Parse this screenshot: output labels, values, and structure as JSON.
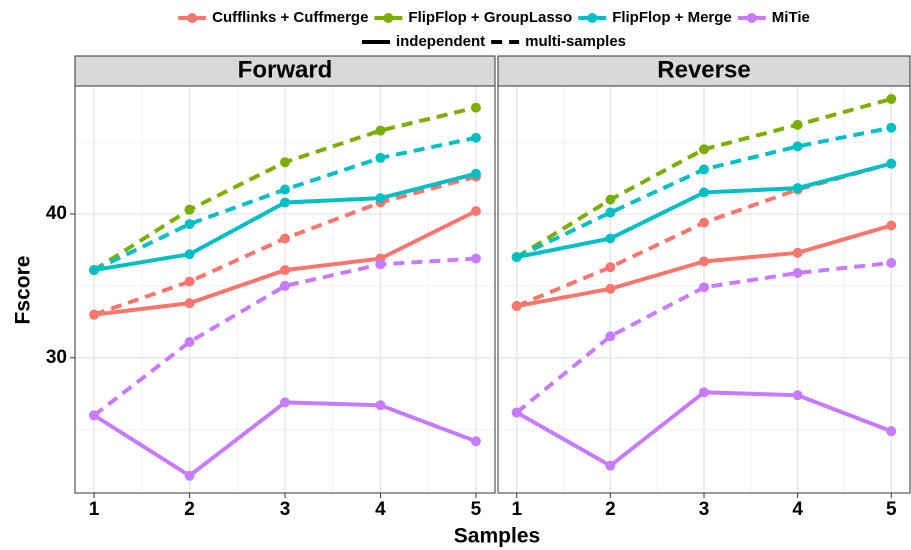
{
  "chart_data": [
    {
      "type": "line",
      "title": "Forward",
      "x_label": "Samples",
      "y_label": "Fscore",
      "x": [
        1,
        2,
        3,
        4,
        5
      ],
      "xlim": [
        0.8,
        5.2
      ],
      "xticks": [
        1,
        2,
        3,
        4,
        5
      ],
      "ylim": [
        20.6,
        48.9
      ],
      "yticks": [
        30,
        40
      ],
      "yminor": [
        25,
        35,
        45
      ],
      "grid": true,
      "series": [
        {
          "name": "Cufflinks + Cuffmerge",
          "linetype": "independent",
          "color": "#f8766d",
          "values": [
            33.0,
            33.8,
            36.1,
            36.9,
            40.2
          ]
        },
        {
          "name": "Cufflinks + Cuffmerge",
          "linetype": "multi-samples",
          "color": "#f8766d",
          "values": [
            33.0,
            35.3,
            38.3,
            40.8,
            42.6
          ]
        },
        {
          "name": "FlipFlop + GroupLasso",
          "linetype": "multi-samples",
          "color": "#7cae00",
          "values": [
            36.1,
            40.3,
            43.6,
            45.8,
            47.4
          ]
        },
        {
          "name": "FlipFlop + Merge",
          "linetype": "independent",
          "color": "#00bfc4",
          "values": [
            36.1,
            37.2,
            40.8,
            41.1,
            42.8
          ]
        },
        {
          "name": "FlipFlop + Merge",
          "linetype": "multi-samples",
          "color": "#00bfc4",
          "values": [
            36.1,
            39.3,
            41.7,
            43.9,
            45.3
          ]
        },
        {
          "name": "MiTie",
          "linetype": "independent",
          "color": "#c77cff",
          "values": [
            26.0,
            21.8,
            26.9,
            26.7,
            24.2
          ]
        },
        {
          "name": "MiTie",
          "linetype": "multi-samples",
          "color": "#c77cff",
          "values": [
            26.0,
            31.1,
            35.0,
            36.5,
            36.9
          ]
        }
      ]
    },
    {
      "type": "line",
      "title": "Reverse",
      "x": [
        1,
        2,
        3,
        4,
        5
      ],
      "xlim": [
        0.8,
        5.2
      ],
      "xticks": [
        1,
        2,
        3,
        4,
        5
      ],
      "ylim": [
        20.6,
        48.9
      ],
      "yticks": [
        30,
        40
      ],
      "yminor": [
        25,
        35,
        45
      ],
      "grid": true,
      "series": [
        {
          "name": "Cufflinks + Cuffmerge",
          "linetype": "independent",
          "color": "#f8766d",
          "values": [
            33.6,
            34.8,
            36.7,
            37.3,
            39.2
          ]
        },
        {
          "name": "Cufflinks + Cuffmerge",
          "linetype": "multi-samples",
          "color": "#f8766d",
          "values": [
            33.6,
            36.3,
            39.4,
            41.7,
            43.5
          ]
        },
        {
          "name": "FlipFlop + GroupLasso",
          "linetype": "multi-samples",
          "color": "#7cae00",
          "values": [
            37.0,
            41.0,
            44.5,
            46.2,
            48.0
          ]
        },
        {
          "name": "FlipFlop + Merge",
          "linetype": "independent",
          "color": "#00bfc4",
          "values": [
            37.0,
            38.3,
            41.5,
            41.8,
            43.5
          ]
        },
        {
          "name": "FlipFlop + Merge",
          "linetype": "multi-samples",
          "color": "#00bfc4",
          "values": [
            37.0,
            40.1,
            43.1,
            44.7,
            46.0
          ]
        },
        {
          "name": "MiTie",
          "linetype": "independent",
          "color": "#c77cff",
          "values": [
            26.2,
            22.5,
            27.6,
            27.4,
            24.9
          ]
        },
        {
          "name": "MiTie",
          "linetype": "multi-samples",
          "color": "#c77cff",
          "values": [
            26.2,
            31.5,
            34.9,
            35.9,
            36.6
          ]
        }
      ]
    }
  ]
}
